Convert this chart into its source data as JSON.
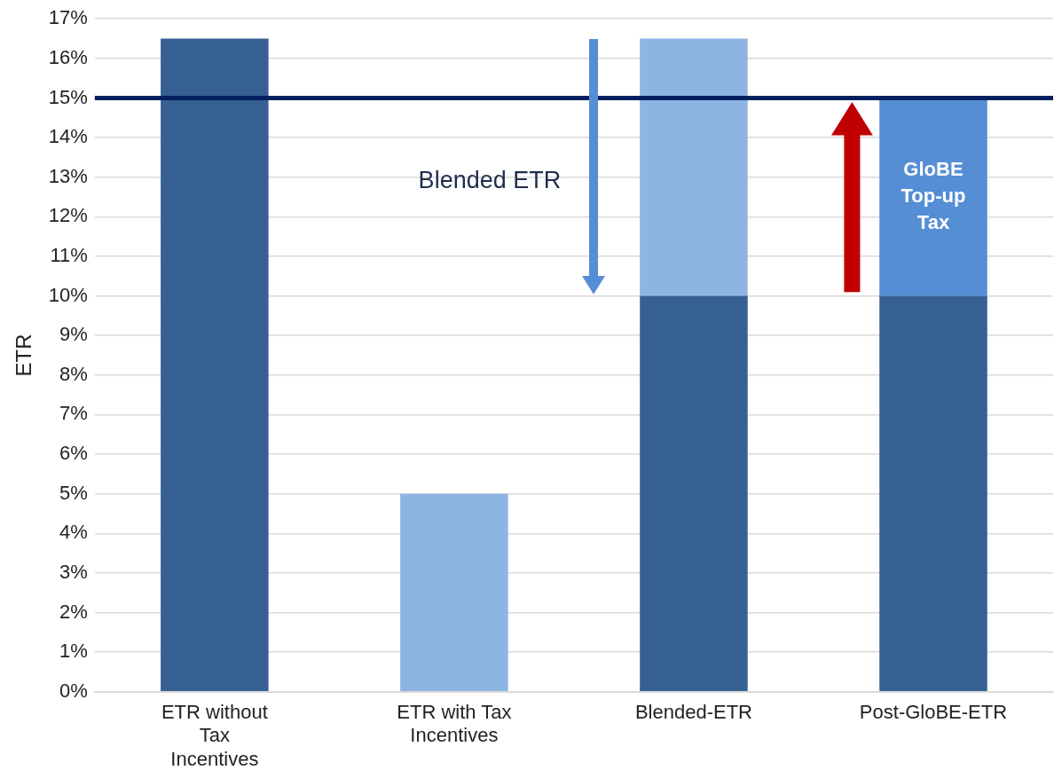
{
  "chart_data": {
    "type": "bar",
    "stacked": true,
    "ylabel": "ETR",
    "categories": [
      "ETR without Tax Incentives",
      "ETR with Tax Incentives",
      "Blended-ETR",
      "Post-GloBE-ETR"
    ],
    "series": [
      {
        "color": "#376092",
        "values": [
          16.5,
          null,
          10,
          10
        ]
      },
      {
        "color": "#8eb4e3",
        "values": [
          null,
          5,
          6.5,
          null
        ]
      },
      {
        "color": "#558ed5",
        "values": [
          null,
          null,
          null,
          5
        ]
      }
    ],
    "ylim": [
      0,
      17
    ],
    "yticks": [
      {
        "value": 0,
        "label": "0%"
      },
      {
        "value": 1,
        "label": "1%"
      },
      {
        "value": 2,
        "label": "2%"
      },
      {
        "value": 3,
        "label": "3%"
      },
      {
        "value": 4,
        "label": "4%"
      },
      {
        "value": 5,
        "label": "5%"
      },
      {
        "value": 6,
        "label": "6%"
      },
      {
        "value": 7,
        "label": "7%"
      },
      {
        "value": 8,
        "label": "8%"
      },
      {
        "value": 9,
        "label": "9%"
      },
      {
        "value": 10,
        "label": "10%"
      },
      {
        "value": 11,
        "label": "11%"
      },
      {
        "value": 12,
        "label": "12%"
      },
      {
        "value": 13,
        "label": "13%"
      },
      {
        "value": 14,
        "label": "14%"
      },
      {
        "value": 15,
        "label": "15%"
      },
      {
        "value": 16,
        "label": "16%"
      },
      {
        "value": 17,
        "label": "17%"
      }
    ],
    "ref_lines": [
      {
        "axis": "y",
        "value": 15,
        "color": "#002060"
      }
    ],
    "annotations": [
      "Blended ETR",
      "GloBE Top-up Tax"
    ],
    "grid": "y",
    "legend": false
  }
}
